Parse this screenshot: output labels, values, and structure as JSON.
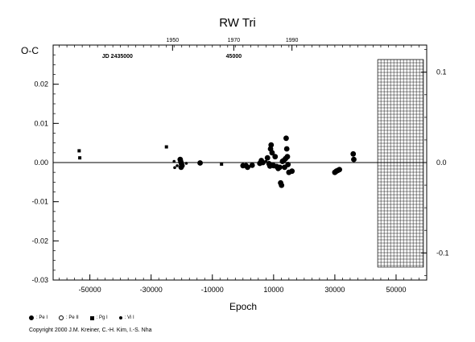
{
  "chart_data": {
    "type": "scatter",
    "title": "RW Tri",
    "xlabel": "Epoch",
    "ylabel": "O-C",
    "xlim": [
      -62000,
      60000
    ],
    "ylim": [
      -0.03,
      0.03
    ],
    "x_ticks": [
      -50000,
      -30000,
      -10000,
      10000,
      30000,
      50000
    ],
    "x_tick_labels": [
      "-50000",
      "-30000",
      "-10000",
      "10000",
      "30000",
      "50000"
    ],
    "y_ticks": [
      -0.03,
      -0.02,
      -0.01,
      0.0,
      0.01,
      0.02
    ],
    "y_tick_labels": [
      "-0.03",
      "-0.02",
      "-0.01",
      "0.00",
      "0.01",
      "0.02"
    ],
    "top_axis": {
      "year_labels": [
        {
          "epoch": -23000,
          "text": "1950"
        },
        {
          "epoch": -3000,
          "text": "1970"
        },
        {
          "epoch": 16000,
          "text": "1990"
        }
      ],
      "jd_labels": [
        {
          "epoch": -41000,
          "text": "JD 2435000"
        },
        {
          "epoch": -3000,
          "text": "45000"
        }
      ]
    },
    "right_axis": {
      "ylim": [
        -0.13,
        0.13
      ],
      "ticks": [
        -0.1,
        0.0,
        0.1
      ],
      "tick_labels": [
        "-0.1",
        "0.0",
        "0.1"
      ]
    },
    "hatched_region": [
      44000,
      60000
    ],
    "series": [
      {
        "name": ": Pe I",
        "symbol": "filled-circle",
        "points": [
          [
            -20500,
            0.0008
          ],
          [
            -20300,
            0.0002
          ],
          [
            -20100,
            -0.0003
          ],
          [
            -19900,
            -0.0008
          ],
          [
            -20200,
            -0.0012
          ],
          [
            -14000,
            -0.0001
          ],
          [
            0,
            -0.0008
          ],
          [
            1000,
            -0.0008
          ],
          [
            1500,
            -0.0012
          ],
          [
            3000,
            -0.0007
          ],
          [
            5500,
            -0.0002
          ],
          [
            6000,
            0.0005
          ],
          [
            6500,
            0.0
          ],
          [
            8000,
            0.0012
          ],
          [
            8500,
            -0.0003
          ],
          [
            8800,
            -0.0009
          ],
          [
            9000,
            0.0035
          ],
          [
            9200,
            0.0045
          ],
          [
            9500,
            0.0025
          ],
          [
            9700,
            -0.0006
          ],
          [
            10000,
            -0.0008
          ],
          [
            10500,
            0.0015
          ],
          [
            11000,
            -0.001
          ],
          [
            11500,
            -0.0015
          ],
          [
            12000,
            -0.0012
          ],
          [
            12300,
            -0.0052
          ],
          [
            12600,
            -0.0058
          ],
          [
            12900,
            0.0003
          ],
          [
            13300,
            0.0005
          ],
          [
            13600,
            -0.0012
          ],
          [
            13900,
            0.001
          ],
          [
            14100,
            0.0062
          ],
          [
            14300,
            0.0035
          ],
          [
            14500,
            0.0015
          ],
          [
            14700,
            -0.0005
          ],
          [
            15000,
            -0.0025
          ],
          [
            16000,
            -0.0022
          ],
          [
            30000,
            -0.0025
          ],
          [
            30500,
            -0.0022
          ],
          [
            31000,
            -0.002
          ],
          [
            31500,
            -0.0018
          ],
          [
            36000,
            0.0022
          ],
          [
            36200,
            0.0008
          ]
        ]
      },
      {
        "name": ": Pe II",
        "symbol": "open-circle",
        "points": []
      },
      {
        "name": ": Pg I",
        "symbol": "filled-square",
        "points": [
          [
            -53500,
            0.003
          ],
          [
            -53300,
            0.0012
          ],
          [
            -25000,
            0.004
          ],
          [
            -7000,
            -0.0004
          ]
        ]
      },
      {
        "name": ": Vi I",
        "symbol": "small-circle",
        "points": [
          [
            -22500,
            0.0003
          ],
          [
            -22300,
            -0.0013
          ],
          [
            -21500,
            -0.0008
          ],
          [
            -18500,
            -0.0002
          ],
          [
            2000,
            -0.0011
          ],
          [
            7500,
            0.0003
          ]
        ]
      }
    ]
  },
  "copyright": "Copyright 2000 J.M. Kreiner, C.-H. Kim, I.-S. Nha"
}
